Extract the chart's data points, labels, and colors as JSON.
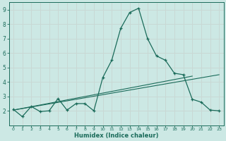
{
  "xlabel": "Humidex (Indice chaleur)",
  "bg_color": "#cce8e4",
  "line_color": "#1a6b5a",
  "grid_color": "#c8d8d4",
  "xlim": [
    -0.5,
    23.5
  ],
  "ylim": [
    1.0,
    9.5
  ],
  "xticks": [
    0,
    1,
    2,
    3,
    4,
    5,
    6,
    7,
    8,
    9,
    10,
    11,
    12,
    13,
    14,
    15,
    16,
    17,
    18,
    19,
    20,
    21,
    22,
    23
  ],
  "yticks": [
    2,
    3,
    4,
    5,
    6,
    7,
    8,
    9
  ],
  "line1_x": [
    0,
    1,
    2,
    3,
    4,
    5,
    6,
    7,
    8,
    9,
    10,
    11,
    12,
    13,
    14,
    15,
    16,
    17,
    18,
    19,
    20,
    21,
    22,
    23
  ],
  "line1_y": [
    2.1,
    1.6,
    2.3,
    1.95,
    2.0,
    2.85,
    2.05,
    2.5,
    2.5,
    2.0,
    4.3,
    5.5,
    7.7,
    8.8,
    9.1,
    7.0,
    5.8,
    5.5,
    4.6,
    4.5,
    2.8,
    2.6,
    2.05,
    2.0
  ],
  "line2_x": [
    0,
    23
  ],
  "line2_y": [
    2.05,
    4.5
  ],
  "line3_x": [
    0,
    20
  ],
  "line3_y": [
    2.05,
    4.4
  ]
}
